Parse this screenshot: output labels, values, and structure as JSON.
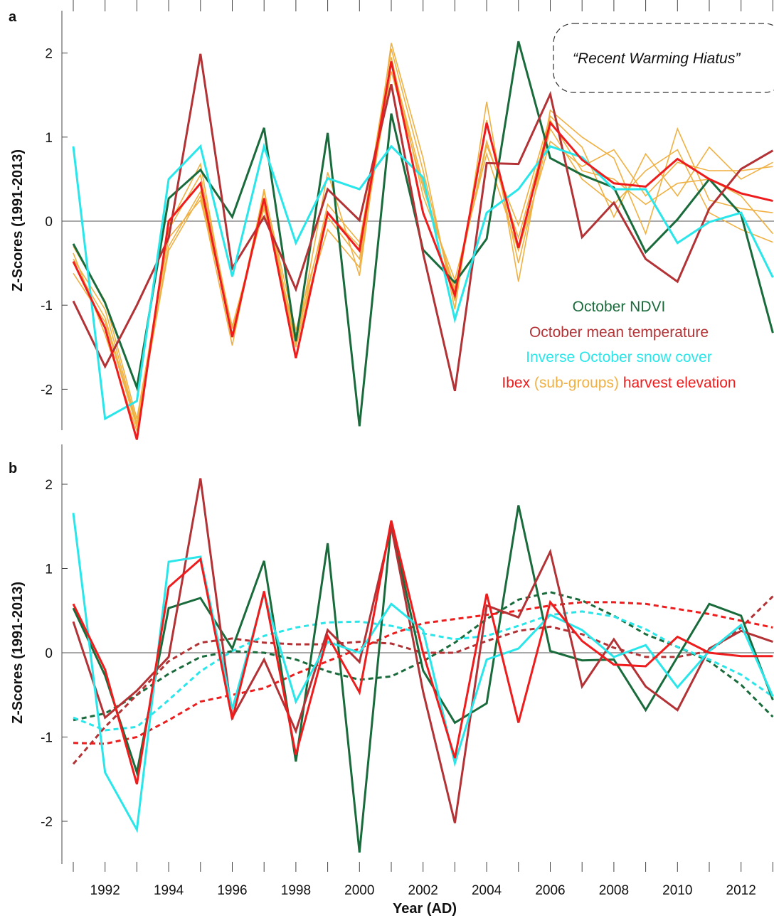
{
  "chart_data": [
    {
      "panel_label": "a",
      "type": "line",
      "ylabel": "Z-Scores (1991-2013)",
      "ylim": [
        -2.5,
        2.5
      ],
      "yticks": [
        2,
        1,
        0,
        -1,
        -2
      ],
      "x": [
        1991,
        1992,
        1993,
        1994,
        1995,
        1996,
        1997,
        1998,
        1999,
        2000,
        2001,
        2002,
        2003,
        2004,
        2005,
        2006,
        2007,
        2008,
        2009,
        2010,
        2011,
        2012,
        2013
      ],
      "annotation": "“Recent Warming Hiatus”",
      "legend": [
        {
          "parts": [
            {
              "text": "October NDVI",
              "color": "#1a6b3c"
            }
          ]
        },
        {
          "parts": [
            {
              "text": "October mean temperature",
              "color": "#b23235"
            }
          ]
        },
        {
          "parts": [
            {
              "text": "Inverse October snow cover",
              "color": "#29e6ea"
            }
          ]
        },
        {
          "parts": [
            {
              "text": "Ibex ",
              "color": "#ee1c1c"
            },
            {
              "text": "(sub-groups)",
              "color": "#f0b144"
            },
            {
              "text": " harvest elevation",
              "color": "#ee1c1c"
            }
          ]
        }
      ],
      "series": [
        {
          "key": "sub1",
          "color": "#f0b144",
          "width": 1.6,
          "values": [
            -0.62,
            -1.2,
            -2.45,
            -0.35,
            0.3,
            -1.48,
            0.38,
            -1.48,
            0.58,
            -0.65,
            2.12,
            0.75,
            -1.05,
            1.42,
            -0.72,
            1.32,
            1.0,
            0.75,
            -0.15,
            1.1,
            0.25,
            0.15,
            0.1
          ]
        },
        {
          "key": "sub2",
          "color": "#f0b144",
          "width": 1.6,
          "values": [
            -0.45,
            -1.05,
            -2.4,
            -0.1,
            0.55,
            -1.28,
            0.2,
            -1.5,
            0.05,
            -0.45,
            1.78,
            0.4,
            -0.8,
            0.9,
            -0.05,
            1.25,
            0.88,
            0.05,
            0.8,
            0.3,
            0.88,
            0.5,
            0.7
          ]
        },
        {
          "key": "sub3",
          "color": "#f0b144",
          "width": 1.6,
          "values": [
            -0.38,
            -1.35,
            -2.5,
            -0.05,
            0.68,
            -1.38,
            0.35,
            -1.3,
            0.1,
            -0.3,
            2.05,
            0.6,
            -0.95,
            1.2,
            -0.5,
            1.1,
            0.5,
            0.2,
            0.6,
            0.85,
            0.1,
            -0.1,
            -0.25
          ]
        },
        {
          "key": "sub4",
          "color": "#f0b144",
          "width": 1.6,
          "values": [
            -0.3,
            -0.95,
            -2.35,
            -0.2,
            0.25,
            -1.25,
            0.15,
            -1.35,
            -0.1,
            -0.55,
            1.95,
            0.3,
            -0.7,
            0.8,
            -0.35,
            0.95,
            0.65,
            0.85,
            0.3,
            0.7,
            0.6,
            0.6,
            0.65
          ]
        },
        {
          "key": "sub5",
          "color": "#f0b144",
          "width": 1.6,
          "values": [
            -0.5,
            -1.15,
            -2.42,
            -0.3,
            0.35,
            -1.35,
            0.28,
            -1.45,
            0.2,
            -0.25,
            1.9,
            0.45,
            -0.85,
            0.95,
            -0.2,
            1.2,
            0.6,
            0.5,
            0.2,
            0.45,
            0.5,
            0.3,
            -0.15
          ]
        },
        {
          "key": "ndvi",
          "color": "#1a6b3c",
          "width": 3,
          "values": [
            -0.27,
            -0.97,
            -1.98,
            0.27,
            0.61,
            0.05,
            1.11,
            -1.43,
            1.05,
            -2.44,
            1.28,
            -0.34,
            -0.73,
            -0.21,
            2.14,
            0.75,
            0.55,
            0.4,
            -0.37,
            0.02,
            0.5,
            0.08,
            -1.33
          ]
        },
        {
          "key": "temp",
          "color": "#b23235",
          "width": 3,
          "values": [
            -0.95,
            -1.73,
            -1.0,
            -0.2,
            1.99,
            -0.56,
            0.05,
            -0.81,
            0.38,
            0.01,
            1.63,
            -0.38,
            -2.02,
            0.69,
            0.68,
            1.51,
            -0.19,
            0.22,
            -0.45,
            -0.72,
            0.15,
            0.62,
            0.84
          ]
        },
        {
          "key": "snow",
          "color": "#29e6ea",
          "width": 3,
          "values": [
            0.89,
            -2.35,
            -2.14,
            0.5,
            0.89,
            -0.66,
            0.89,
            -0.26,
            0.51,
            0.38,
            0.89,
            0.52,
            -1.17,
            0.1,
            0.38,
            0.89,
            0.76,
            0.38,
            0.38,
            -0.26,
            -0.01,
            0.1,
            -0.67
          ]
        },
        {
          "key": "ibex",
          "color": "#ee1c1c",
          "width": 3,
          "values": [
            -0.48,
            -1.27,
            -2.6,
            0.0,
            0.45,
            -1.38,
            0.27,
            -1.63,
            0.1,
            -0.35,
            1.9,
            0.1,
            -0.88,
            1.17,
            -0.32,
            1.17,
            0.73,
            0.45,
            0.41,
            0.74,
            0.5,
            0.33,
            0.24
          ]
        }
      ]
    },
    {
      "panel_label": "b",
      "type": "line",
      "ylabel": "Z-Scores (1991-2013)",
      "xlabel": "Year (AD)",
      "ylim": [
        -2.45,
        2.45
      ],
      "yticks": [
        2,
        1,
        0,
        -1,
        -2
      ],
      "xticks": [
        1992,
        1994,
        1996,
        1998,
        2000,
        2002,
        2004,
        2006,
        2008,
        2010,
        2012
      ],
      "x": [
        1991,
        1992,
        1993,
        1994,
        1995,
        1996,
        1997,
        1998,
        1999,
        2000,
        2001,
        2002,
        2003,
        2004,
        2005,
        2006,
        2007,
        2008,
        2009,
        2010,
        2011,
        2012,
        2013
      ],
      "series": [
        {
          "key": "ndvi_trend",
          "color": "#1a6b3c",
          "width": 3,
          "dashed": true,
          "values": [
            -0.8,
            -0.72,
            -0.5,
            -0.25,
            -0.05,
            0.02,
            0.0,
            -0.08,
            -0.22,
            -0.32,
            -0.28,
            -0.1,
            0.12,
            0.4,
            0.63,
            0.72,
            0.62,
            0.44,
            0.22,
            0.07,
            -0.1,
            -0.38,
            -0.76
          ]
        },
        {
          "key": "temp_trend",
          "color": "#b23235",
          "width": 3,
          "dashed": true,
          "values": [
            -1.32,
            -0.88,
            -0.5,
            -0.1,
            0.12,
            0.17,
            0.12,
            0.1,
            0.1,
            0.13,
            0.11,
            0.0,
            0.0,
            0.14,
            0.26,
            0.31,
            0.22,
            0.06,
            -0.05,
            -0.05,
            0.02,
            0.3,
            0.67
          ]
        },
        {
          "key": "snow_trend",
          "color": "#29e6ea",
          "width": 3,
          "dashed": true,
          "values": [
            -0.77,
            -0.92,
            -0.88,
            -0.56,
            -0.22,
            0.02,
            0.2,
            0.3,
            0.36,
            0.37,
            0.32,
            0.23,
            0.16,
            0.2,
            0.32,
            0.45,
            0.49,
            0.43,
            0.28,
            0.07,
            -0.08,
            -0.26,
            -0.52
          ]
        },
        {
          "key": "ibex_trend",
          "color": "#ee1c1c",
          "width": 3,
          "dashed": true,
          "values": [
            -1.07,
            -1.08,
            -1.0,
            -0.8,
            -0.58,
            -0.5,
            -0.42,
            -0.25,
            -0.1,
            0.05,
            0.22,
            0.35,
            0.4,
            0.45,
            0.5,
            0.56,
            0.6,
            0.6,
            0.58,
            0.52,
            0.46,
            0.38,
            0.3
          ]
        },
        {
          "key": "ndvi",
          "color": "#1a6b3c",
          "width": 3,
          "values": [
            0.53,
            -0.27,
            -1.42,
            0.53,
            0.65,
            0.05,
            1.09,
            -1.29,
            1.3,
            -2.37,
            1.53,
            -0.21,
            -0.83,
            -0.6,
            1.75,
            0.02,
            -0.09,
            -0.08,
            -0.68,
            -0.05,
            0.58,
            0.44,
            -0.56
          ]
        },
        {
          "key": "temp",
          "color": "#b23235",
          "width": 3,
          "values": [
            0.37,
            -0.77,
            -0.45,
            -0.05,
            2.07,
            -0.77,
            -0.08,
            -0.93,
            0.27,
            -0.11,
            1.5,
            -0.46,
            -2.02,
            0.56,
            0.42,
            1.2,
            -0.4,
            0.16,
            -0.4,
            -0.68,
            0.05,
            0.26,
            0.13
          ]
        },
        {
          "key": "snow",
          "color": "#29e6ea",
          "width": 3,
          "values": [
            1.66,
            -1.42,
            -2.1,
            1.08,
            1.14,
            -0.67,
            0.7,
            -0.58,
            0.13,
            0.0,
            0.58,
            0.27,
            -1.31,
            -0.08,
            0.05,
            0.45,
            0.27,
            -0.05,
            0.09,
            -0.41,
            0.02,
            0.33,
            -0.52
          ]
        },
        {
          "key": "ibex",
          "color": "#ee1c1c",
          "width": 3,
          "values": [
            0.58,
            -0.2,
            -1.56,
            0.78,
            1.11,
            -0.79,
            0.73,
            -1.21,
            0.2,
            -0.47,
            1.57,
            0.0,
            -1.25,
            0.7,
            -0.83,
            0.6,
            0.14,
            -0.14,
            -0.16,
            0.19,
            0.0,
            -0.04,
            -0.04
          ]
        }
      ]
    }
  ]
}
